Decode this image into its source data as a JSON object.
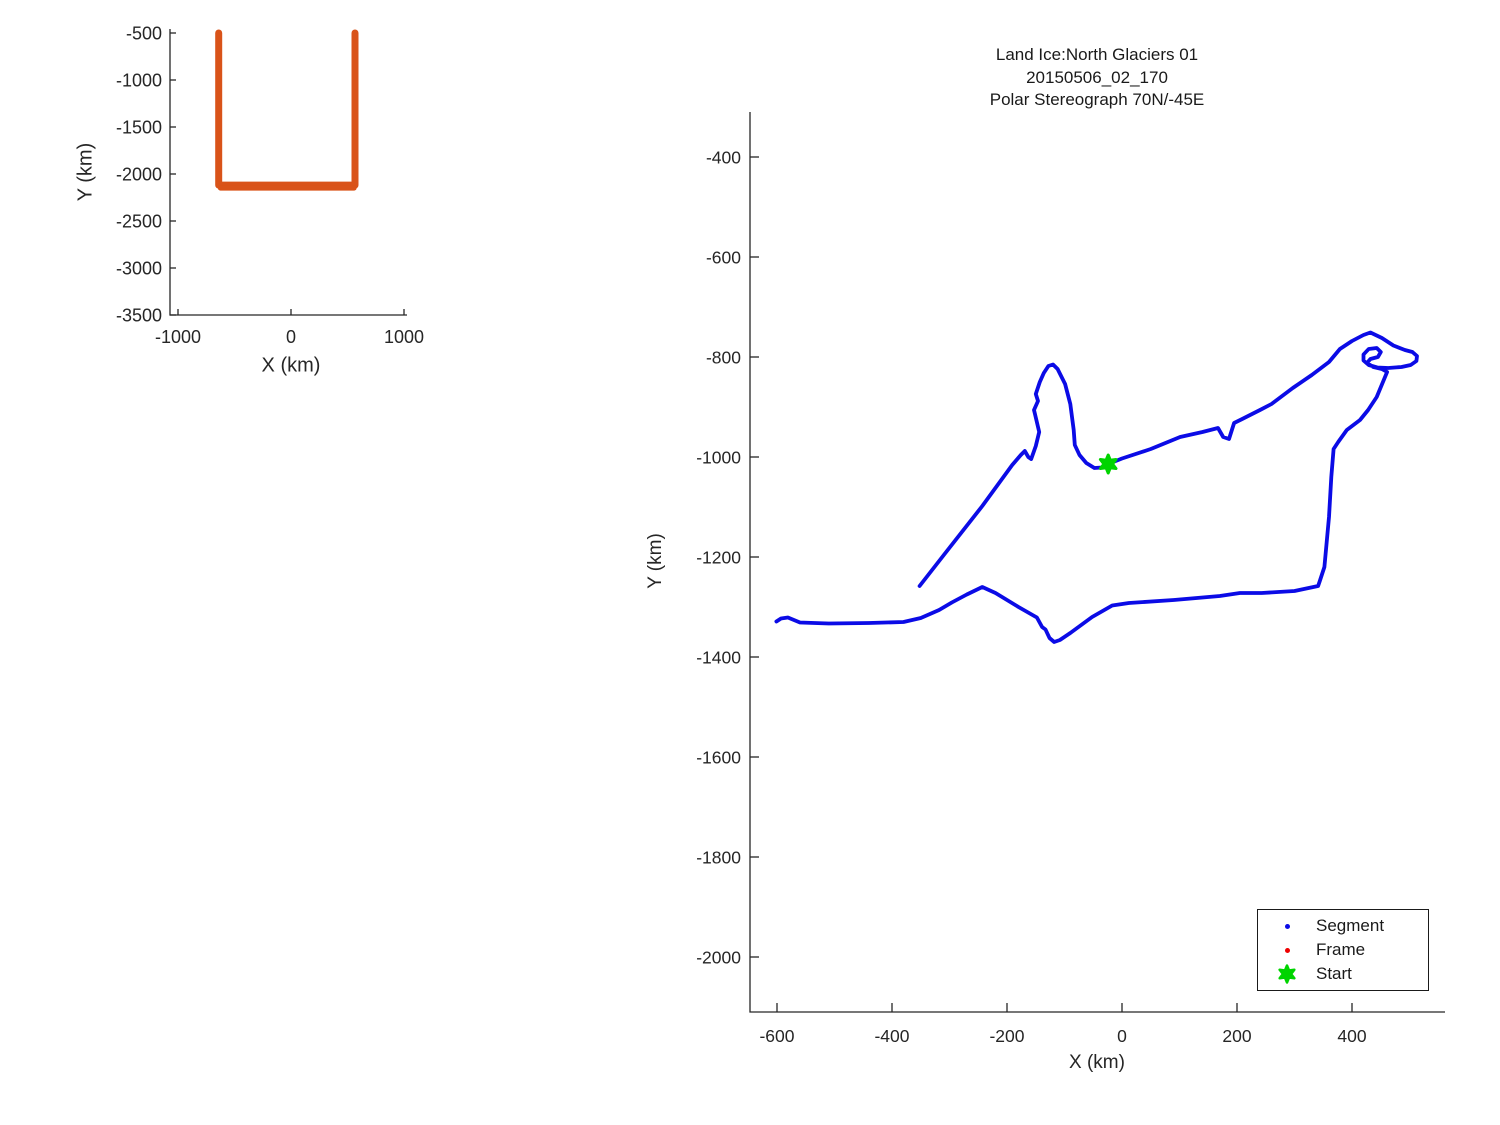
{
  "window": {
    "background": "#ffffff"
  },
  "colors": {
    "track_orange": "#D95319",
    "segment_blue": "#0B0BE6",
    "frame_red": "#EE0000",
    "start_green": "#00D400",
    "axis": "#262626",
    "text": "#262626"
  },
  "overview_plot": {
    "xlabel": "X (km)",
    "ylabel": "Y (km)"
  },
  "main_plot": {
    "title_lines": [
      "Land Ice:North Glaciers 01",
      "20150506_02_170",
      "Polar Stereograph 70N/-45E"
    ],
    "xlabel": "X (km)",
    "ylabel": "Y (km)",
    "legend": {
      "items": [
        {
          "label": "Segment",
          "marker": "dot",
          "color": "#0B0BE6"
        },
        {
          "label": "Frame",
          "marker": "dot",
          "color": "#EE0000"
        },
        {
          "label": "Start",
          "marker": "hexagram",
          "color": "#00D400"
        }
      ]
    }
  },
  "chart_data": [
    {
      "id": "overview",
      "type": "line",
      "title": "",
      "xlabel": "X (km)",
      "ylabel": "Y (km)",
      "xlim": [
        -1070,
        1025
      ],
      "ylim": [
        -3500,
        -455
      ],
      "grid": false,
      "xticks": [
        -1000,
        0,
        1000
      ],
      "yticks": [
        -500,
        -1000,
        -1500,
        -2000,
        -2500,
        -3000,
        -3500
      ],
      "series": [
        {
          "name": "flight-track-outline",
          "color": "#D95319",
          "width": 7,
          "points": [
            [
              -640,
              -500
            ],
            [
              -640,
              -2118
            ],
            [
              566,
              -2118
            ],
            [
              566,
              -500
            ]
          ]
        },
        {
          "name": "flight-track-outline-lower",
          "color": "#D95319",
          "width": 5,
          "points": [
            [
              -625,
              -2150
            ],
            [
              558,
              -2150
            ]
          ]
        }
      ],
      "markers": []
    },
    {
      "id": "main",
      "type": "line",
      "title": "Land Ice:North Glaciers 01 20150506_02_170 Polar Stereograph 70N/-45E",
      "xlabel": "X (km)",
      "ylabel": "Y (km)",
      "xlim": [
        -645,
        562
      ],
      "ylim": [
        -2110,
        -310
      ],
      "grid": false,
      "xticks": [
        -600,
        -400,
        -200,
        0,
        200,
        400
      ],
      "yticks": [
        -400,
        -600,
        -800,
        -1000,
        -1200,
        -1400,
        -1600,
        -1800,
        -2000
      ],
      "series": [
        {
          "name": "segment-track",
          "color": "#0B0BE6",
          "width": 3.8,
          "points": [
            [
              -352,
              -1258
            ],
            [
              -310,
              -1196
            ],
            [
              -243,
              -1098
            ],
            [
              -191,
              -1016
            ],
            [
              -176,
              -996
            ],
            [
              -169,
              -988
            ],
            [
              -163,
              -1000
            ],
            [
              -158,
              -1004
            ],
            [
              -150,
              -978
            ],
            [
              -144,
              -950
            ],
            [
              -151,
              -916
            ],
            [
              -153,
              -906
            ],
            [
              -146,
              -888
            ],
            [
              -150,
              -874
            ],
            [
              -143,
              -850
            ],
            [
              -136,
              -832
            ],
            [
              -128,
              -818
            ],
            [
              -120,
              -815
            ],
            [
              -112,
              -824
            ],
            [
              -99,
              -854
            ],
            [
              -90,
              -894
            ],
            [
              -84,
              -946
            ],
            [
              -82,
              -976
            ],
            [
              -74,
              -996
            ],
            [
              -62,
              -1012
            ],
            [
              -48,
              -1022
            ],
            [
              -35,
              -1021
            ],
            [
              -24,
              -1014
            ],
            [
              0,
              -1003
            ],
            [
              50,
              -984
            ],
            [
              101,
              -960
            ],
            [
              140,
              -950
            ],
            [
              167,
              -942
            ],
            [
              176,
              -960
            ],
            [
              186,
              -964
            ],
            [
              195,
              -932
            ],
            [
              209,
              -924
            ],
            [
              240,
              -906
            ],
            [
              260,
              -894
            ],
            [
              297,
              -862
            ],
            [
              330,
              -836
            ],
            [
              360,
              -810
            ],
            [
              379,
              -784
            ],
            [
              400,
              -768
            ],
            [
              420,
              -756
            ],
            [
              432,
              -751
            ],
            [
              452,
              -762
            ],
            [
              472,
              -777
            ],
            [
              492,
              -786
            ],
            [
              505,
              -790
            ],
            [
              513,
              -798
            ],
            [
              512,
              -808
            ],
            [
              502,
              -816
            ],
            [
              486,
              -820
            ],
            [
              463,
              -822
            ],
            [
              444,
              -821
            ],
            [
              429,
              -816
            ],
            [
              420,
              -807
            ],
            [
              420,
              -795
            ],
            [
              429,
              -784
            ],
            [
              443,
              -782
            ],
            [
              450,
              -790
            ],
            [
              445,
              -800
            ],
            [
              432,
              -804
            ],
            [
              426,
              -812
            ],
            [
              437,
              -820
            ],
            [
              452,
              -824
            ],
            [
              461,
              -830
            ],
            [
              443,
              -880
            ],
            [
              428,
              -906
            ],
            [
              414,
              -926
            ],
            [
              391,
              -946
            ],
            [
              376,
              -970
            ],
            [
              368,
              -984
            ],
            [
              364,
              -1040
            ],
            [
              360,
              -1120
            ],
            [
              352,
              -1220
            ],
            [
              344,
              -1248
            ],
            [
              341,
              -1258
            ],
            [
              300,
              -1268
            ],
            [
              243,
              -1272
            ],
            [
              205,
              -1272
            ],
            [
              170,
              -1278
            ],
            [
              90,
              -1286
            ],
            [
              12,
              -1292
            ],
            [
              -17,
              -1297
            ],
            [
              -52,
              -1320
            ],
            [
              -90,
              -1352
            ],
            [
              -108,
              -1366
            ],
            [
              -118,
              -1370
            ],
            [
              -126,
              -1362
            ],
            [
              -133,
              -1345
            ],
            [
              -139,
              -1340
            ],
            [
              -148,
              -1321
            ],
            [
              -180,
              -1300
            ],
            [
              -220,
              -1272
            ],
            [
              -243,
              -1260
            ],
            [
              -270,
              -1275
            ],
            [
              -296,
              -1291
            ],
            [
              -318,
              -1306
            ],
            [
              -350,
              -1322
            ],
            [
              -380,
              -1330
            ],
            [
              -440,
              -1332
            ],
            [
              -510,
              -1333
            ],
            [
              -560,
              -1331
            ],
            [
              -581,
              -1321
            ],
            [
              -593,
              -1323
            ],
            [
              -601,
              -1329
            ]
          ]
        }
      ],
      "markers": [
        {
          "name": "start",
          "shape": "hexagram",
          "color": "#00D400",
          "x": -24,
          "y": -1014,
          "r": 9
        }
      ],
      "legend_position": "south-east"
    }
  ]
}
